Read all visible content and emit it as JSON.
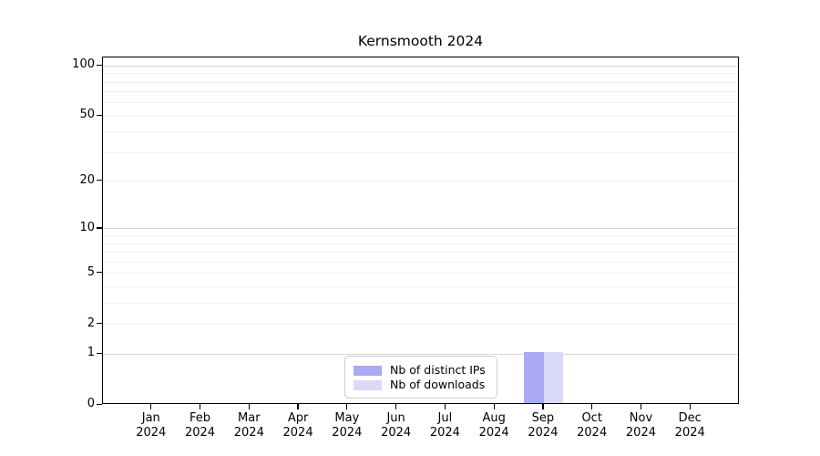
{
  "chart_data": {
    "type": "bar",
    "title": "Kernsmooth 2024",
    "x_tick_months": [
      "Jan",
      "Feb",
      "Mar",
      "Apr",
      "May",
      "Jun",
      "Jul",
      "Aug",
      "Sep",
      "Oct",
      "Nov",
      "Dec"
    ],
    "x_tick_year": "2024",
    "y_ticks": [
      0,
      1,
      2,
      5,
      10,
      20,
      50,
      100
    ],
    "major_gridlines": [
      1,
      10,
      100
    ],
    "minor_gridlines": [
      2,
      3,
      4,
      5,
      6,
      7,
      8,
      9,
      20,
      30,
      40,
      50,
      60,
      70,
      80,
      90
    ],
    "yscale": "log1p",
    "ylim": [
      0,
      112.4
    ],
    "grid": true,
    "series": [
      {
        "name": "Nb of distinct IPs",
        "color": "#a9a9f5",
        "values": [
          0,
          0,
          0,
          0,
          0,
          0,
          0,
          0,
          1,
          0,
          0,
          0
        ]
      },
      {
        "name": "Nb of downloads",
        "color": "#d9d9f8",
        "values": [
          0,
          0,
          0,
          0,
          0,
          0,
          0,
          0,
          1,
          0,
          0,
          0
        ]
      }
    ],
    "legend": {
      "position": "lower center"
    }
  },
  "colors": {
    "axis": "#000000",
    "major_grid": "#d9d9d9",
    "minor_grid": "#f0f0f0",
    "legend_border": "#cccccc",
    "background": "#ffffff"
  }
}
